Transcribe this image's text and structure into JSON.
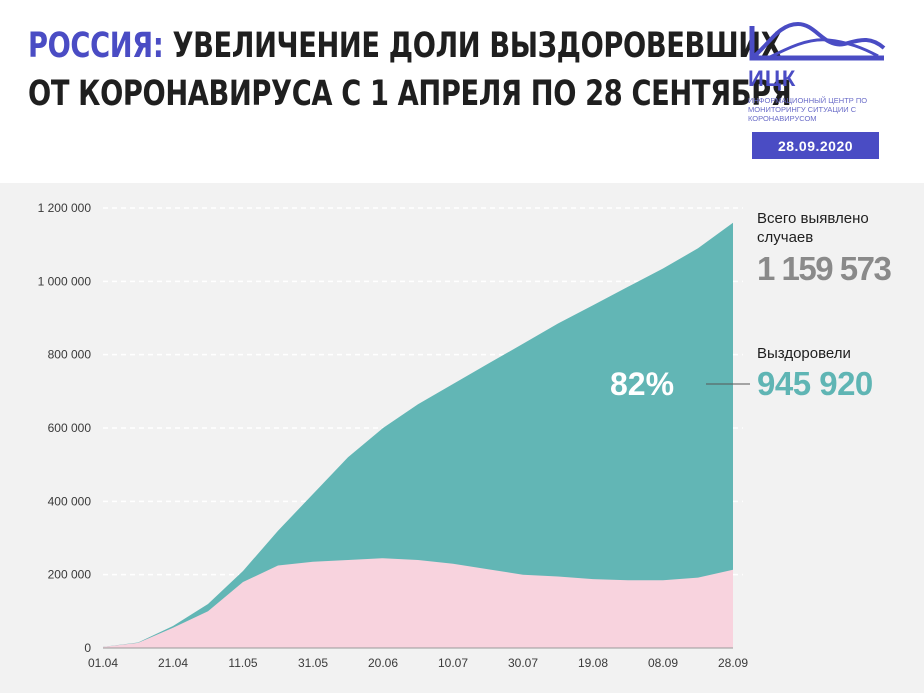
{
  "header": {
    "title_accent": "РОССИЯ:",
    "title_line1_rest": " УВЕЛИЧЕНИЕ ДОЛИ ВЫЗДОРОВЕВШИХ",
    "title_line2": "ОТ КОРОНАВИРУСА С 1 АПРЕЛЯ ПО 28 СЕНТЯБРЯ",
    "logo_name": "ИЦК",
    "logo_subtitle": "ИНФОРМАЦИОННЫЙ ЦЕНТР ПО МОНИТОРИНГУ СИТУАЦИИ С КОРОНАВИРУСОМ",
    "date": "28.09.2020",
    "brand_color": "#4a4cc4"
  },
  "side": {
    "total_label": "Всего выявлено случаев",
    "total_value": "1 159 573",
    "recovered_label": "Выздоровели",
    "recovered_value": "945 920",
    "share_label": "82%"
  },
  "chart_data": {
    "type": "area",
    "title": "",
    "xlabel": "",
    "ylabel": "",
    "ylim": [
      0,
      1200000
    ],
    "y_ticks": [
      0,
      200000,
      400000,
      600000,
      800000,
      1000000,
      1200000
    ],
    "y_tick_labels": [
      "0",
      "200 000",
      "400 000",
      "600 000",
      "800 000",
      "1 000 000",
      "1 200 000"
    ],
    "x_tick_labels": [
      "01.04",
      "21.04",
      "11.05",
      "31.05",
      "20.06",
      "10.07",
      "30.07",
      "19.08",
      "08.09",
      "28.09"
    ],
    "grid": true,
    "colors": {
      "total": "#62b6b5",
      "active": "#f8d3de"
    },
    "x": [
      "01.04",
      "11.04",
      "21.04",
      "01.05",
      "11.05",
      "21.05",
      "31.05",
      "10.06",
      "20.06",
      "30.06",
      "10.07",
      "20.07",
      "30.07",
      "09.08",
      "19.08",
      "29.08",
      "08.09",
      "18.09",
      "28.09"
    ],
    "series": [
      {
        "name": "",
        "values": [
          3000,
          15000,
          60000,
          120000,
          210000,
          320000,
          420000,
          520000,
          600000,
          665000,
          720000,
          775000,
          830000,
          885000,
          935000,
          985000,
          1035000,
          1090000,
          1159573
        ]
      },
      {
        "name": "",
        "values": [
          3000,
          14000,
          55000,
          100000,
          180000,
          225000,
          235000,
          240000,
          245000,
          240000,
          230000,
          215000,
          200000,
          195000,
          188000,
          185000,
          185000,
          192000,
          213653
        ]
      }
    ]
  }
}
